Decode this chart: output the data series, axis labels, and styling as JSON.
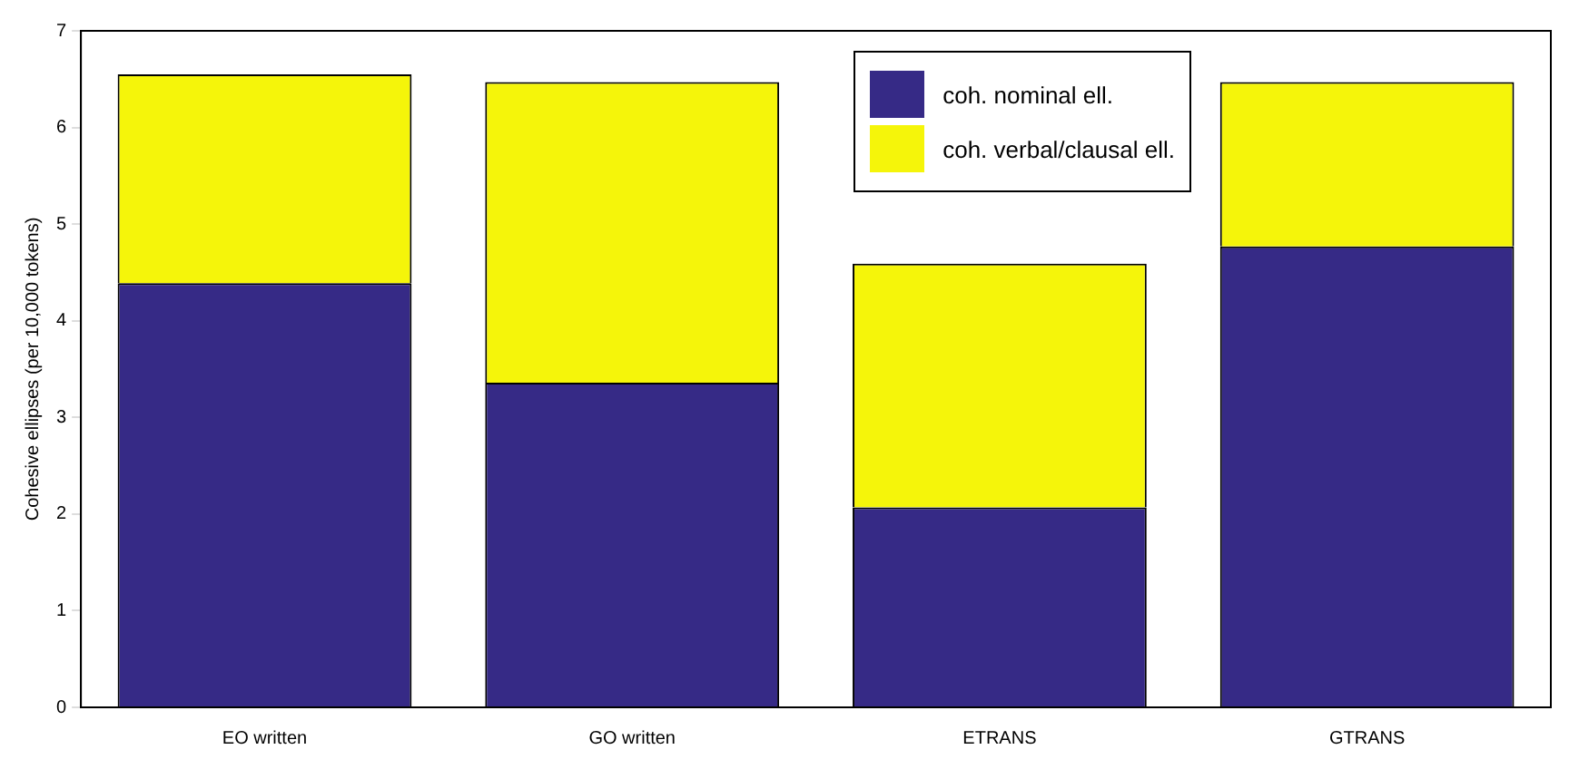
{
  "chart_data": {
    "type": "bar",
    "stacked": true,
    "ylabel": "Cohesive ellipses (per 10,000 tokens)",
    "categories": [
      "EO written",
      "GO written",
      "ETRANS",
      "GTRANS"
    ],
    "series": [
      {
        "name": "coh. nominal ell.",
        "color": "#362a86",
        "values": [
          4.39,
          3.36,
          2.07,
          4.77
        ]
      },
      {
        "name": "coh. verbal/clausal ell.",
        "color": "#f5f50a",
        "values": [
          2.16,
          3.11,
          2.52,
          1.7
        ]
      }
    ],
    "ylim": [
      0,
      7
    ],
    "yticks": [
      0,
      1,
      2,
      3,
      4,
      5,
      6,
      7
    ],
    "grid": false,
    "legend": "top right"
  }
}
